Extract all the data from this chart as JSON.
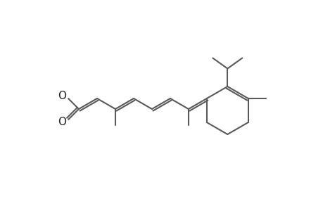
{
  "bg_color": "#ffffff",
  "line_color": "#5a5a5a",
  "line_width": 1.5,
  "figsize": [
    4.6,
    3.0
  ],
  "dpi": 100
}
